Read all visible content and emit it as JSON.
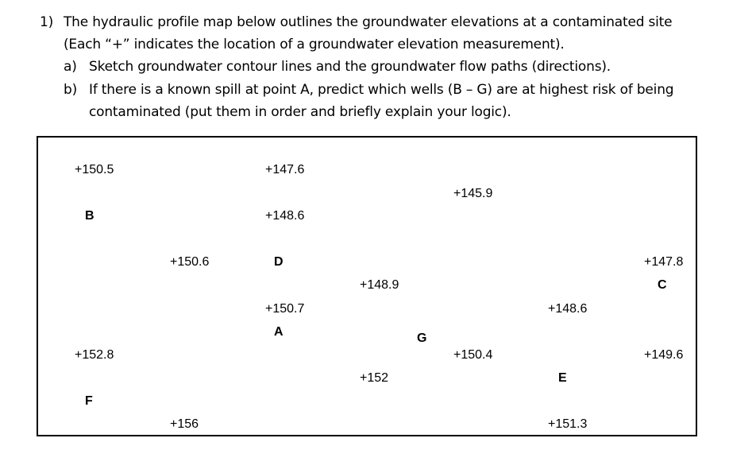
{
  "question": {
    "number": "1)",
    "line1": "The hydraulic profile map below outlines the groundwater elevations at a contaminated site",
    "line2": "(Each “+” indicates the location of a groundwater elevation measurement).",
    "part_a_label": "a)",
    "part_a_text": "Sketch groundwater contour lines and the groundwater flow paths (directions).",
    "part_b_label": "b)",
    "part_b_line1": "If there is a known spill at point A, predict which wells (B – G) are at highest risk of being",
    "part_b_line2": "contaminated (put them in order and briefly explain your logic)."
  },
  "map": {
    "elevations": [
      {
        "id": "e1",
        "label": "+150.5"
      },
      {
        "id": "e2",
        "label": "+147.6"
      },
      {
        "id": "e3",
        "label": "+145.9"
      },
      {
        "id": "e4",
        "label": "+148.6"
      },
      {
        "id": "e5",
        "label": "+150.6"
      },
      {
        "id": "e6",
        "label": "+147.8"
      },
      {
        "id": "e7",
        "label": "+148.9"
      },
      {
        "id": "e8",
        "label": "+150.7"
      },
      {
        "id": "e9",
        "label": "+148.6"
      },
      {
        "id": "e10",
        "label": "+152.8"
      },
      {
        "id": "e11",
        "label": "+150.4"
      },
      {
        "id": "e12",
        "label": "+149.6"
      },
      {
        "id": "e13",
        "label": "+152"
      },
      {
        "id": "e14",
        "label": "+156"
      },
      {
        "id": "e15",
        "label": "+151.3"
      }
    ],
    "wells": {
      "A": "A",
      "B": "B",
      "C": "C",
      "D": "D",
      "E": "E",
      "F": "F",
      "G": "G"
    }
  }
}
